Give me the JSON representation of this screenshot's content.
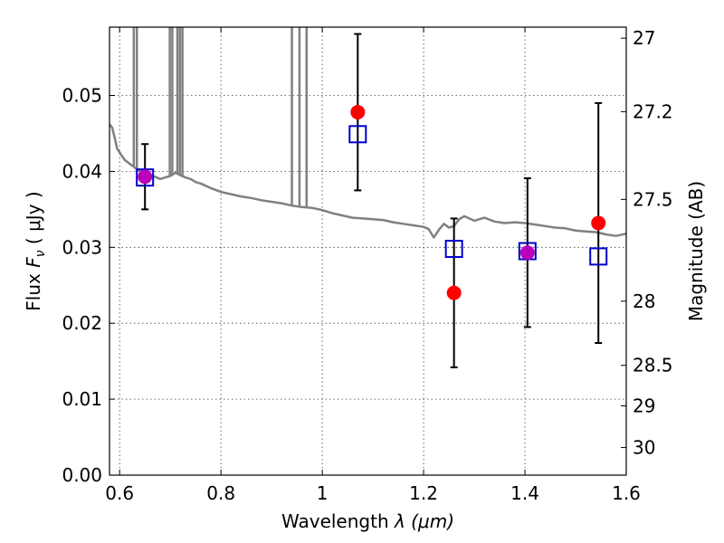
{
  "chart_data": {
    "type": "scatter",
    "title": "",
    "xlabel_prefix": "Wavelength  ",
    "xlabel_math": "λ (μm)",
    "ylabel_prefix": "Flux  ",
    "ylabel_math": "F",
    "ylabel_sub": "ν",
    "ylabel_suffix": "  ( μJy )",
    "y2label": "Magnitude (AB)",
    "xlim": [
      0.58,
      1.6
    ],
    "ylim": [
      0.0,
      0.059
    ],
    "grid": true,
    "x_ticks": [
      0.6,
      0.8,
      1.0,
      1.2,
      1.4,
      1.6
    ],
    "x_tick_labels": [
      "0.6",
      "0.8",
      "1",
      "1.2",
      "1.4",
      "1.6"
    ],
    "y_ticks": [
      0.0,
      0.01,
      0.02,
      0.03,
      0.04,
      0.05
    ],
    "y_tick_labels": [
      "0.00",
      "0.01",
      "0.02",
      "0.03",
      "0.04",
      "0.05"
    ],
    "y2_ticks": [
      27,
      27.2,
      27.5,
      28,
      28.5,
      29,
      30
    ],
    "y2_tick_labels": [
      "27",
      "27.2",
      "27.5",
      "28",
      "28.5",
      "29",
      "30"
    ],
    "observed": {
      "color": "#ff0000",
      "x": [
        0.65,
        1.07,
        1.26,
        1.405,
        1.545
      ],
      "y": [
        0.0393,
        0.0478,
        0.024,
        0.0293,
        0.0332
      ],
      "y_err": [
        0.0043,
        0.0103,
        0.0098,
        0.0098,
        0.0158
      ]
    },
    "model_photometry": {
      "color": "#0000cc",
      "x": [
        0.65,
        1.07,
        1.26,
        1.405,
        1.545
      ],
      "y": [
        0.0392,
        0.0449,
        0.0298,
        0.0295,
        0.0288
      ]
    },
    "overlap_marker_color": "#bb00bb",
    "model_spectrum": {
      "color": "#808080",
      "x": [
        0.58,
        0.585,
        0.59,
        0.595,
        0.6,
        0.61,
        0.62,
        0.63,
        0.64,
        0.65,
        0.66,
        0.67,
        0.68,
        0.69,
        0.7,
        0.71,
        0.72,
        0.73,
        0.74,
        0.75,
        0.76,
        0.78,
        0.8,
        0.82,
        0.84,
        0.86,
        0.88,
        0.9,
        0.92,
        0.94,
        0.96,
        0.98,
        1.0,
        1.02,
        1.04,
        1.06,
        1.08,
        1.1,
        1.12,
        1.14,
        1.16,
        1.18,
        1.2,
        1.21,
        1.22,
        1.23,
        1.24,
        1.25,
        1.26,
        1.27,
        1.28,
        1.3,
        1.32,
        1.34,
        1.36,
        1.38,
        1.4,
        1.42,
        1.44,
        1.46,
        1.48,
        1.5,
        1.52,
        1.54,
        1.56,
        1.58,
        1.6
      ],
      "y": [
        0.0462,
        0.0458,
        0.0445,
        0.043,
        0.0425,
        0.0415,
        0.041,
        0.0405,
        0.04,
        0.0398,
        0.0395,
        0.0393,
        0.039,
        0.0392,
        0.0394,
        0.0398,
        0.0395,
        0.0392,
        0.039,
        0.0386,
        0.0384,
        0.0378,
        0.0373,
        0.037,
        0.0367,
        0.0365,
        0.0362,
        0.036,
        0.0358,
        0.0355,
        0.0353,
        0.0352,
        0.0349,
        0.0345,
        0.0342,
        0.0339,
        0.0338,
        0.0337,
        0.0336,
        0.0333,
        0.0331,
        0.0329,
        0.0327,
        0.0324,
        0.0313,
        0.0323,
        0.0331,
        0.0326,
        0.0328,
        0.0337,
        0.0341,
        0.0335,
        0.0339,
        0.0334,
        0.0332,
        0.0333,
        0.0332,
        0.033,
        0.0328,
        0.0326,
        0.0325,
        0.0322,
        0.0321,
        0.032,
        0.0317,
        0.0315,
        0.0318
      ],
      "spikes": [
        {
          "x": 0.628,
          "ymax": 0.059
        },
        {
          "x": 0.634,
          "ymax": 0.059
        },
        {
          "x": 0.699,
          "ymax": 0.059
        },
        {
          "x": 0.704,
          "ymax": 0.059
        },
        {
          "x": 0.714,
          "ymax": 0.059
        },
        {
          "x": 0.719,
          "ymax": 0.059
        },
        {
          "x": 0.724,
          "ymax": 0.059
        },
        {
          "x": 0.94,
          "ymax": 0.059
        },
        {
          "x": 0.955,
          "ymax": 0.059
        },
        {
          "x": 0.969,
          "ymax": 0.059
        }
      ]
    }
  }
}
